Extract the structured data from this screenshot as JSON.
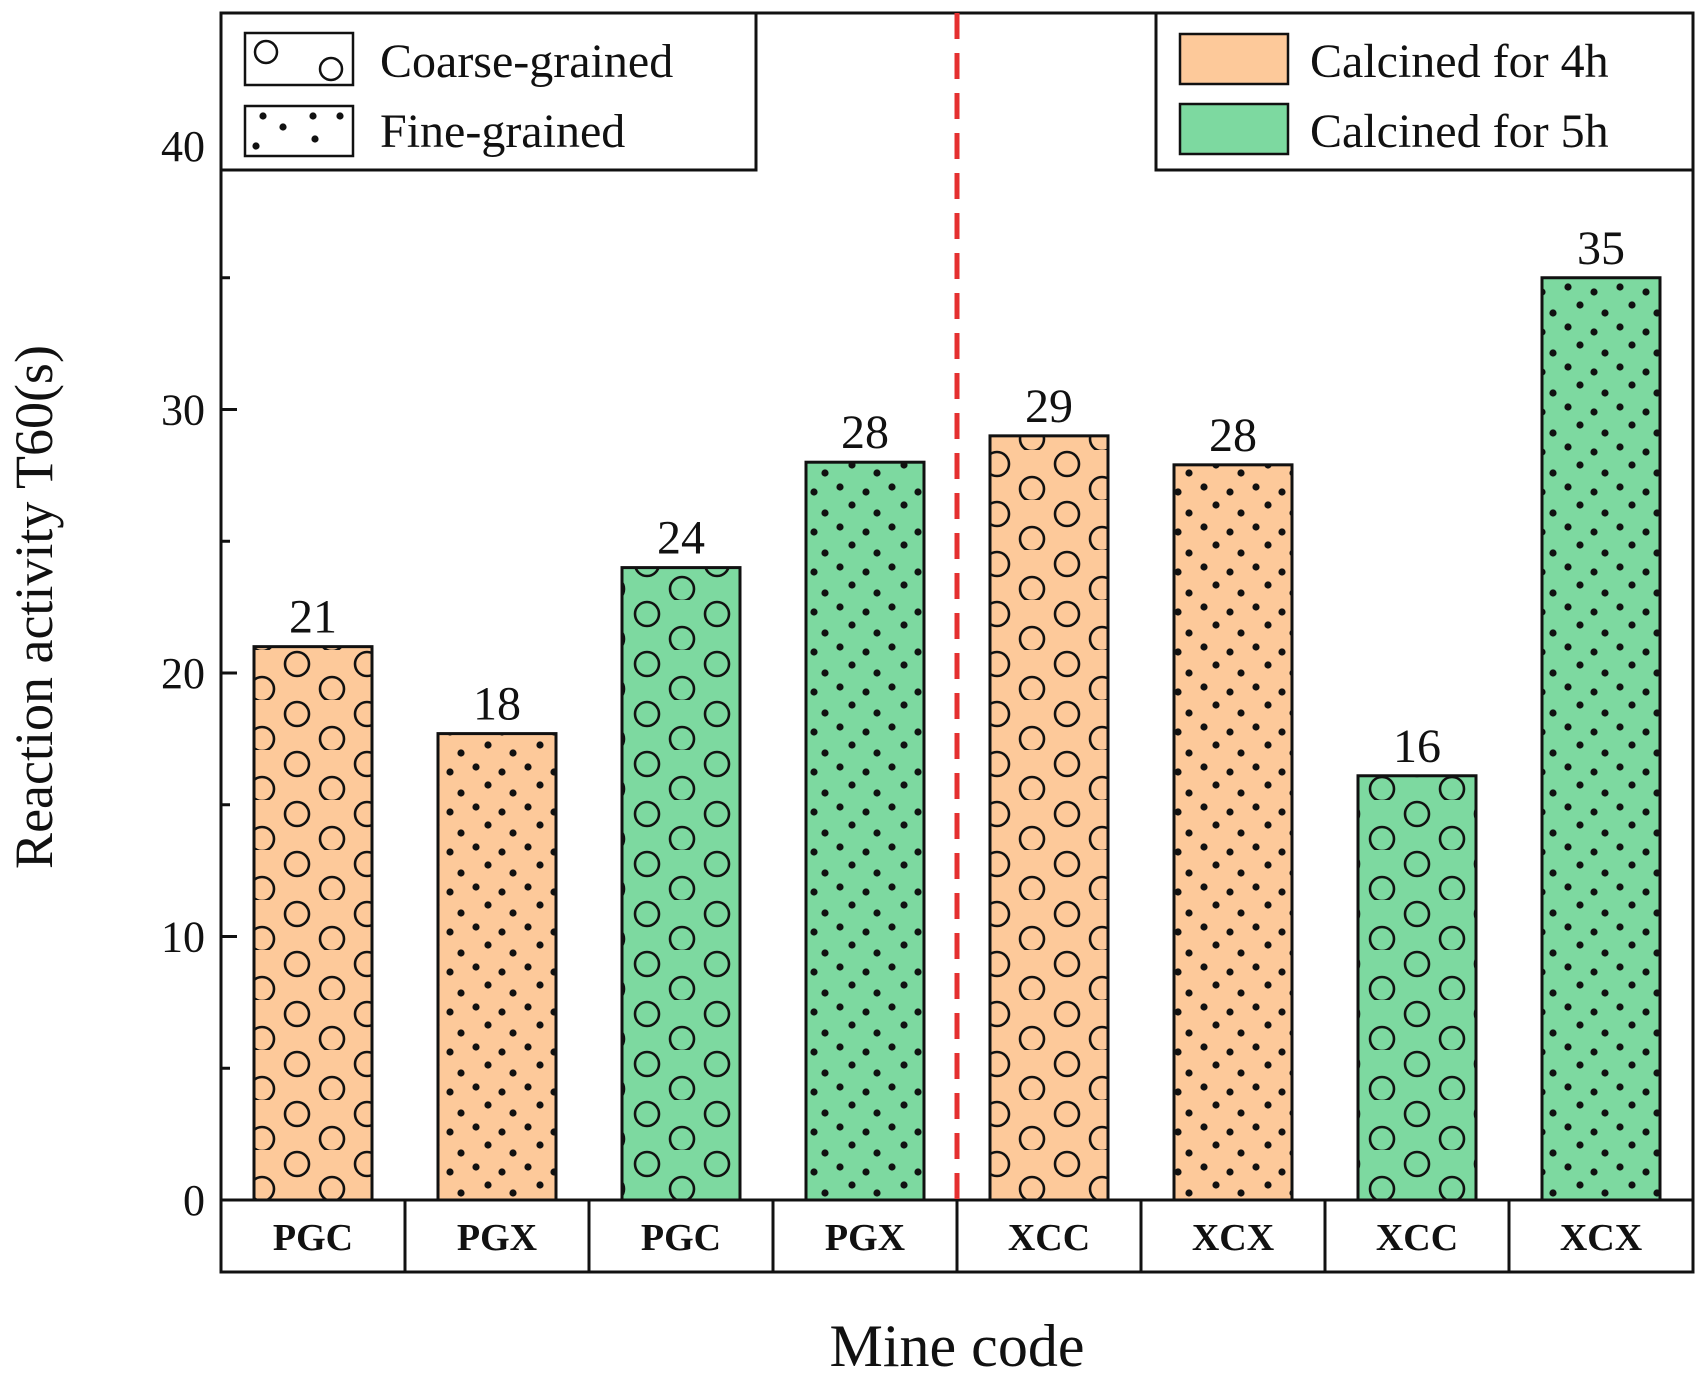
{
  "chart_data": {
    "type": "bar",
    "ylabel": "Reaction activity T60(s)",
    "xlabel": "Mine code",
    "ylim": [
      0,
      45
    ],
    "yticks": [
      0,
      10,
      20,
      30,
      40
    ],
    "categories": [
      "PGC",
      "PGX",
      "PGC",
      "PGX",
      "XCC",
      "XCX",
      "XCC",
      "XCX"
    ],
    "values": [
      21,
      17.7,
      24,
      28,
      29,
      27.9,
      16.1,
      35
    ],
    "value_labels": [
      "21",
      "18",
      "24",
      "28",
      "29",
      "28",
      "16",
      "35"
    ],
    "calcination": [
      "4h",
      "4h",
      "5h",
      "5h",
      "4h",
      "4h",
      "5h",
      "5h"
    ],
    "grain": [
      "coarse",
      "fine",
      "coarse",
      "fine",
      "coarse",
      "fine",
      "coarse",
      "fine"
    ],
    "legend_pattern": [
      {
        "label": "Coarse-grained",
        "pattern": "coarse"
      },
      {
        "label": "Fine-grained",
        "pattern": "fine"
      }
    ],
    "legend_color": [
      {
        "label": "Calcined for 4h",
        "key": "4h"
      },
      {
        "label": "Calcined for 5h",
        "key": "5h"
      }
    ],
    "legend_placement": [
      "top-left",
      "top-right"
    ],
    "divider": "red dashed line between PGX and XCC groups"
  },
  "colors": {
    "4h": "#FDC99A",
    "5h": "#7DD9A0",
    "divider": "#E53030",
    "axis": "#111111"
  }
}
